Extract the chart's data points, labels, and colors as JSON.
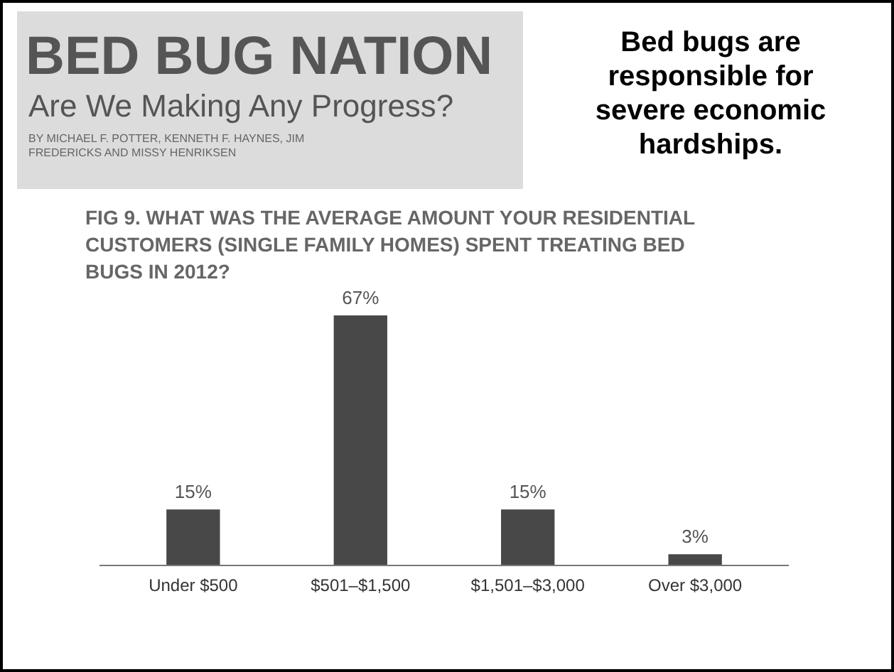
{
  "chart_data": {
    "type": "bar",
    "title": "FIG 9. WHAT WAS THE AVERAGE AMOUNT YOUR RESIDENTIAL CUSTOMERS (SINGLE FAMILY HOMES) SPENT TREATING BED BUGS IN 2012?",
    "subtitle": "Bed bugs are responsible for severe economic hardships.",
    "annotations": [
      "BED BUG NATION",
      "Are We Making Any Progress?",
      "BY MICHAEL F. POTTER, KENNETH F. HAYNES, JIM FREDERICKS AND MISSY HENRIKSEN"
    ],
    "categories": [
      "Under $500",
      "$501–$1,500",
      "$1,501–$3,000",
      "Over $3,000"
    ],
    "values": [
      15,
      67,
      15,
      3
    ],
    "color": "#484848",
    "value_labels": [
      "15%",
      "67%",
      "15%",
      "3%"
    ]
  }
}
